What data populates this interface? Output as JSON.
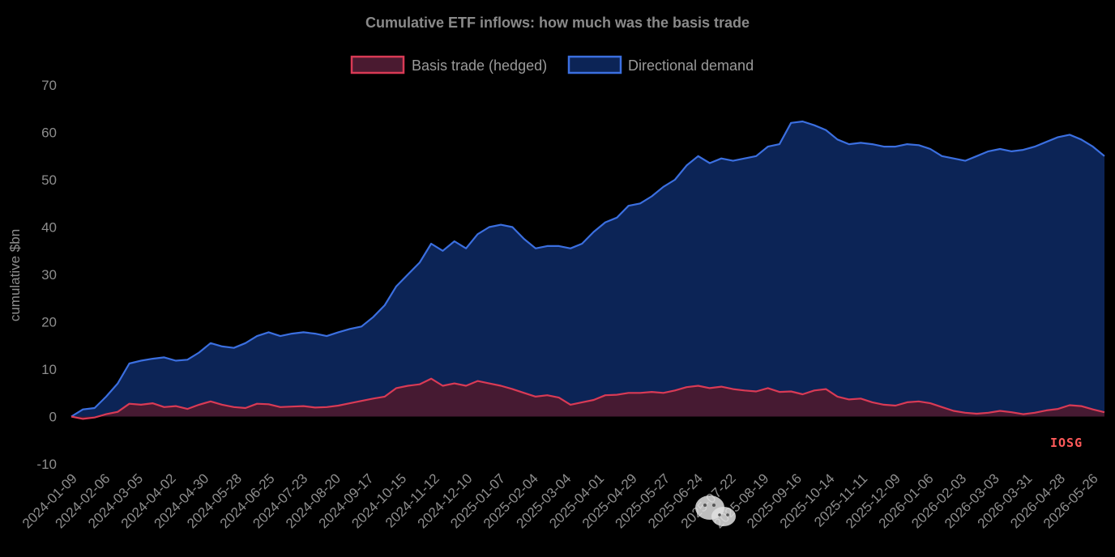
{
  "chart_data": {
    "type": "area",
    "title": "Cumulative ETF inflows: how much was the basis trade",
    "ylabel": "cumulative $bn",
    "ylim": [
      -10,
      70
    ],
    "yticks": [
      70,
      60,
      50,
      40,
      30,
      20,
      10,
      0,
      -10
    ],
    "xlabels": [
      "2024-01-09",
      "2024-02-06",
      "2024-03-05",
      "2024-04-02",
      "2024-04-30",
      "2024-05-28",
      "2024-06-25",
      "2024-07-23",
      "2024-08-20",
      "2024-09-17",
      "2024-10-15",
      "2024-11-12",
      "2024-12-10",
      "2025-01-07",
      "2025-02-04",
      "2025-03-04",
      "2025-04-01",
      "2025-04-29",
      "2025-05-27",
      "2025-06-24",
      "2025-07-22",
      "2025-08-19",
      "2025-09-16",
      "2025-10-14",
      "2025-11-11",
      "2025-12-09",
      "2026-01-06",
      "2026-02-03",
      "2026-03-03",
      "2026-03-31",
      "2026-04-28",
      "2026-05-26"
    ],
    "legend": {
      "position": "top"
    },
    "series": [
      {
        "name": "Directional demand",
        "color": "#3b6fe0",
        "fill": "#0c2456",
        "values": [
          0,
          1.5,
          1.8,
          4.2,
          7.0,
          11.2,
          11.8,
          12.2,
          12.5,
          11.8,
          12.0,
          13.5,
          15.5,
          14.8,
          14.5,
          15.5,
          17.0,
          17.8,
          17.0,
          17.5,
          17.8,
          17.5,
          17.0,
          17.8,
          18.5,
          19.0,
          21.0,
          23.5,
          27.5,
          30.0,
          32.5,
          36.5,
          35.0,
          37.0,
          35.5,
          38.5,
          40.0,
          40.5,
          40.0,
          37.5,
          35.5,
          36.0,
          36.0,
          35.5,
          36.5,
          39.0,
          41.0,
          42.0,
          44.5,
          45.0,
          46.5,
          48.5,
          50.0,
          53.0,
          55.0,
          53.5,
          54.5,
          54.0,
          54.5,
          55.0,
          57.0,
          57.5,
          62.0,
          62.3,
          61.5,
          60.5,
          58.5,
          57.5,
          57.8,
          57.5,
          57.0,
          57.0,
          57.5,
          57.3,
          56.5,
          55.0,
          54.5,
          54.0,
          55.0,
          56.0,
          56.5,
          56.0,
          56.3,
          57.0,
          58.0,
          59.0,
          59.5,
          58.5,
          57.0,
          55.0
        ]
      },
      {
        "name": "Basis trade (hedged)",
        "color": "#d93a55",
        "fill": "#4a1a30",
        "values": [
          0,
          -0.5,
          -0.2,
          0.5,
          1.0,
          2.7,
          2.5,
          2.8,
          2.0,
          2.2,
          1.6,
          2.5,
          3.2,
          2.5,
          2.0,
          1.8,
          2.7,
          2.6,
          2.0,
          2.1,
          2.2,
          1.9,
          2.0,
          2.3,
          2.8,
          3.3,
          3.8,
          4.2,
          6.0,
          6.5,
          6.8,
          8.0,
          6.5,
          7.0,
          6.5,
          7.5,
          7.0,
          6.5,
          5.8,
          5.0,
          4.2,
          4.5,
          4.0,
          2.5,
          3.0,
          3.5,
          4.5,
          4.6,
          5.0,
          5.0,
          5.2,
          5.0,
          5.5,
          6.2,
          6.5,
          6.0,
          6.3,
          5.8,
          5.5,
          5.3,
          6.0,
          5.2,
          5.3,
          4.7,
          5.5,
          5.8,
          4.2,
          3.6,
          3.8,
          3.0,
          2.5,
          2.3,
          3.0,
          3.2,
          2.8,
          2.0,
          1.2,
          0.8,
          0.6,
          0.8,
          1.2,
          0.9,
          0.5,
          0.8,
          1.3,
          1.6,
          2.4,
          2.2,
          1.5,
          0.9
        ]
      }
    ]
  },
  "stamp": "IOSG"
}
